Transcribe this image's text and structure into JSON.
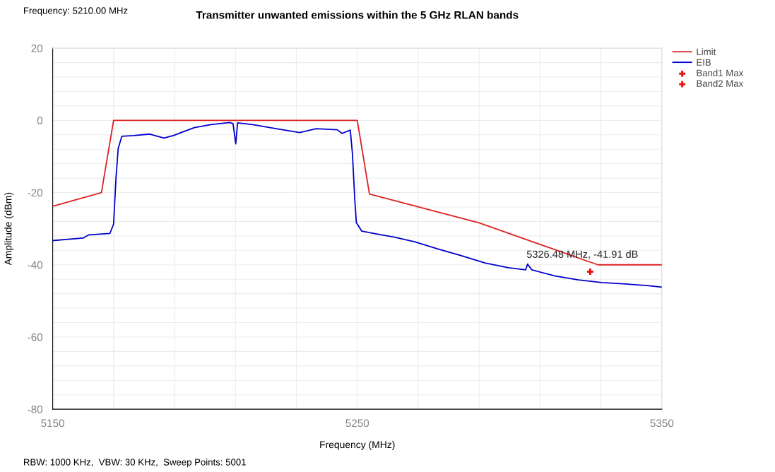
{
  "chart_data": {
    "type": "line",
    "title": "Transmitter unwanted emissions within the 5 GHz RLAN bands",
    "xlabel": "Frequency (MHz)",
    "ylabel": "Amplitude (dBm)",
    "xlim": [
      5150,
      5350
    ],
    "ylim": [
      -80,
      20
    ],
    "xticks": [
      5150,
      {
        "value": 5170,
        "label": null
      },
      {
        "value": 5190,
        "label": null
      },
      {
        "value": 5210,
        "label": null
      },
      {
        "value": 5230,
        "label": null
      },
      5250,
      {
        "value": 5270,
        "label": null
      },
      {
        "value": 5290,
        "label": null
      },
      {
        "value": 5310,
        "label": null
      },
      {
        "value": 5330,
        "label": null
      },
      5350
    ],
    "yticks": [
      -80,
      {
        "value": -76,
        "label": null
      },
      {
        "value": -72,
        "label": null
      },
      {
        "value": -68,
        "label": null
      },
      {
        "value": -64,
        "label": null
      },
      -60,
      {
        "value": -56,
        "label": null
      },
      {
        "value": -52,
        "label": null
      },
      {
        "value": -48,
        "label": null
      },
      {
        "value": -44,
        "label": null
      },
      -40,
      {
        "value": -36,
        "label": null
      },
      {
        "value": -32,
        "label": null
      },
      {
        "value": -28,
        "label": null
      },
      {
        "value": -24,
        "label": null
      },
      -20,
      {
        "value": -16,
        "label": null
      },
      {
        "value": -12,
        "label": null
      },
      {
        "value": -8,
        "label": null
      },
      {
        "value": -4,
        "label": null
      },
      0,
      {
        "value": 4,
        "label": null
      },
      {
        "value": 8,
        "label": null
      },
      {
        "value": 12,
        "label": null
      },
      {
        "value": 16,
        "label": null
      },
      20
    ],
    "grid": true,
    "legend": "top right",
    "series": [
      {
        "name": "Limit",
        "color": "#dd2222",
        "x": [
          5150,
          5166,
          5170,
          5250,
          5254,
          5290,
          5329,
          5350
        ],
        "values": [
          -23.8,
          -20,
          0,
          0,
          -20.4,
          -28.4,
          -40,
          -40
        ]
      },
      {
        "name": "EIB",
        "color": "#0000cc",
        "x": [
          5150,
          5160,
          5161.9,
          5168.8,
          5170,
          5170.8,
          5171.5,
          5172.7,
          5176.5,
          5181.9,
          5186.5,
          5189.6,
          5196.5,
          5201.9,
          5208.1,
          5209.2,
          5210.1,
          5210.7,
          5215.7,
          5223.4,
          5231.1,
          5236.5,
          5243.4,
          5245,
          5247.7,
          5248.4,
          5249.2,
          5249.7,
          5250,
          5251.5,
          5257.3,
          5261.9,
          5268.8,
          5276.5,
          5284.2,
          5291.9,
          5299.6,
          5305.3,
          5305.9,
          5307.3,
          5315,
          5322.6,
          5330.3,
          5338,
          5345.7,
          5350
        ],
        "values": [
          -33.3,
          -32.6,
          -31.7,
          -31.3,
          -28.7,
          -15.7,
          -7.8,
          -4.4,
          -4.2,
          -3.8,
          -4.9,
          -4.2,
          -2,
          -1.2,
          -0.6,
          -0.9,
          -6.5,
          -0.7,
          -1.2,
          -2.3,
          -3.4,
          -2.3,
          -2.6,
          -3.6,
          -2.7,
          -9.1,
          -22.2,
          -28.4,
          -28.7,
          -30.7,
          -31.6,
          -32.3,
          -33.6,
          -35.6,
          -37.5,
          -39.5,
          -40.8,
          -41.4,
          -39.8,
          -41.4,
          -43.1,
          -44.2,
          -44.9,
          -45.3,
          -45.8,
          -46.2
        ]
      },
      {
        "name": "Band1 Max",
        "type": "scatter",
        "color": "#ee1111",
        "marker": "cross"
      },
      {
        "name": "Band2 Max",
        "type": "scatter",
        "color": "#ee1111",
        "marker": "cross",
        "x": [
          5326.48
        ],
        "values": [
          -41.91
        ]
      }
    ],
    "annotations": [
      "Frequency: 5210.00 MHz",
      {
        "text": "5326.48 MHz, -41.91 dB",
        "x": 5326.48,
        "y": -41.91
      },
      "RBW: 1000 KHz,  VBW: 30 KHz,  Sweep Points: 5001"
    ]
  }
}
